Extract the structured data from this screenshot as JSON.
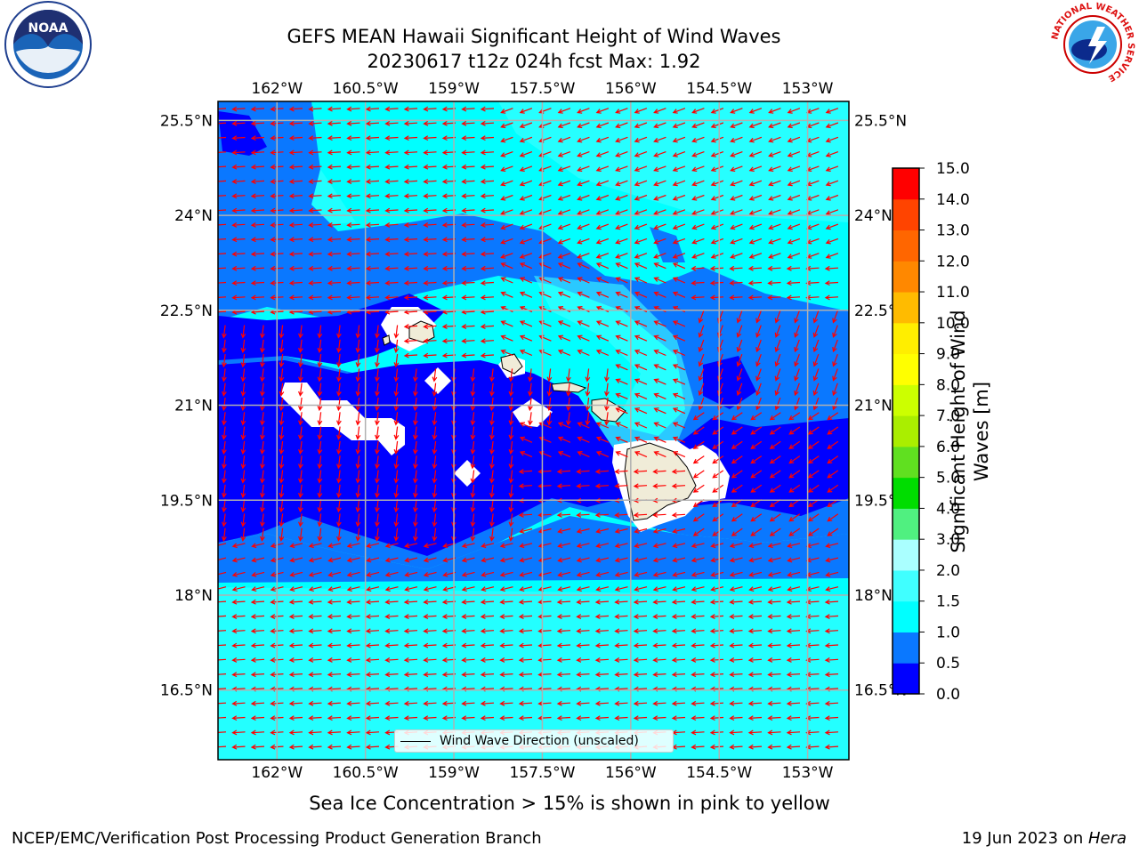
{
  "header": {
    "title_line1": "GEFS MEAN Hawaii Significant Height of Wind Waves",
    "title_line2": "20230617 t12z 024h fcst   Max: 1.92"
  },
  "logos": {
    "noaa_text": "NOAA",
    "nws_text": "NATIONAL WEATHER SERVICE"
  },
  "map": {
    "lon_ticks": [
      "162°W",
      "160.5°W",
      "159°W",
      "157.5°W",
      "156°W",
      "154.5°W",
      "153°W"
    ],
    "lat_ticks": [
      "25.5°N",
      "24°N",
      "22.5°N",
      "21°N",
      "19.5°N",
      "18°N",
      "16.5°N"
    ],
    "lon_values": [
      -162,
      -160.5,
      -159,
      -157.5,
      -156,
      -154.5,
      -153
    ],
    "lat_values": [
      25.5,
      24,
      22.5,
      21,
      19.5,
      18,
      16.5
    ],
    "lon_range": [
      -163,
      -152.3
    ],
    "lat_range": [
      15.4,
      25.8
    ],
    "legend_label": "Wind Wave Direction (unscaled)",
    "arrow_color": "#ff0000"
  },
  "colorbar": {
    "label": "Significant Height of Wind Waves [m]",
    "ticks": [
      "0.0",
      "0.5",
      "1.0",
      "1.5",
      "2.0",
      "3.0",
      "4.0",
      "5.0",
      "6.0",
      "7.0",
      "8.0",
      "9.0",
      "10.0",
      "11.0",
      "12.0",
      "13.0",
      "14.0",
      "15.0"
    ],
    "colors": [
      "#0000ff",
      "#0a78ff",
      "#00ffff",
      "#40ffff",
      "#aaffff",
      "#50f080",
      "#00dd00",
      "#60e020",
      "#aaee00",
      "#ccff00",
      "#ffff00",
      "#ffee00",
      "#ffbb00",
      "#ff8800",
      "#ff6600",
      "#ff4400",
      "#ff0000"
    ]
  },
  "footer": {
    "sea_ice_note": "Sea Ice Concentration > 15% is shown in pink to yellow",
    "left": "NCEP/EMC/Verification Post Processing Product Generation Branch",
    "right_date": "19 Jun 2023 on ",
    "right_host": "Hera"
  }
}
